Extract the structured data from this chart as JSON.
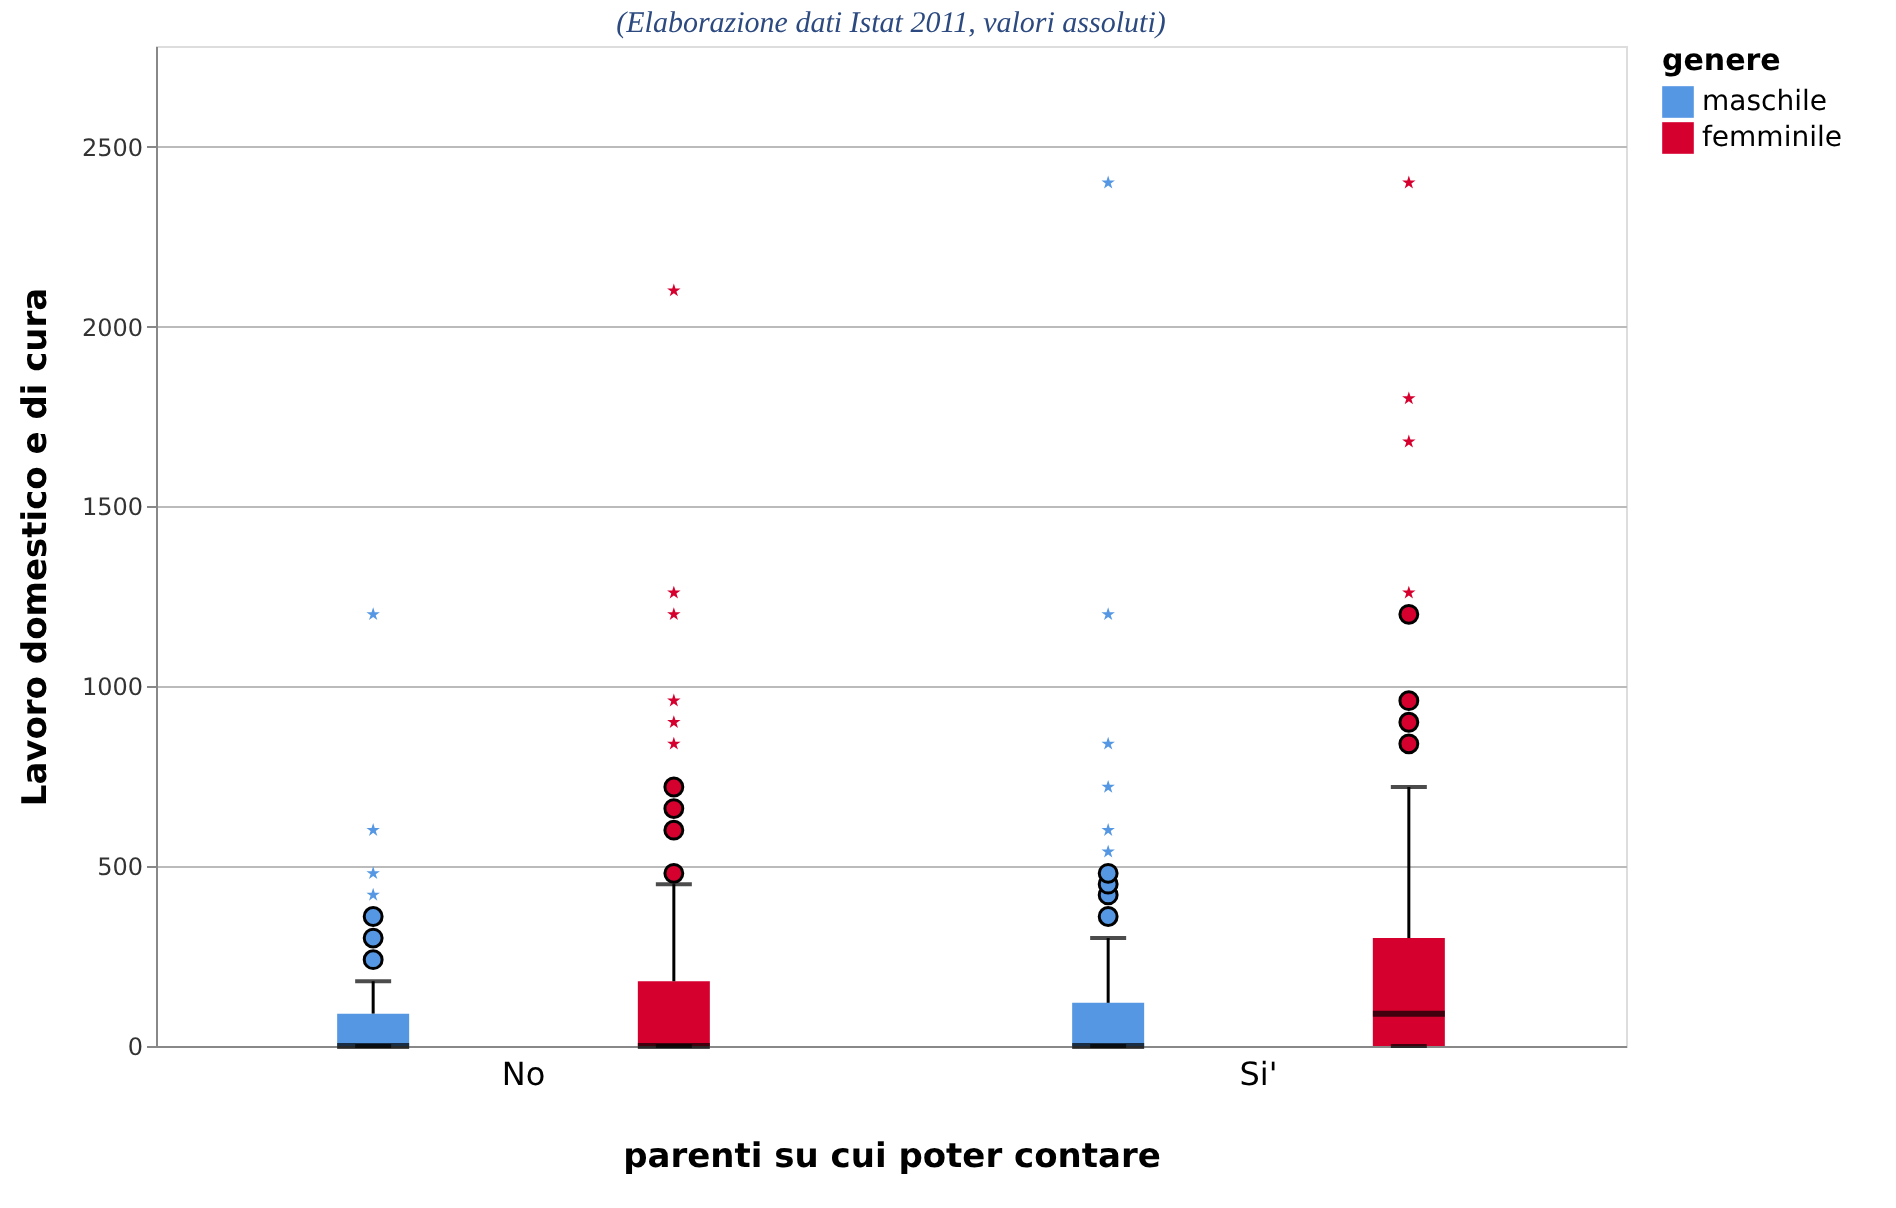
{
  "chart_data": {
    "type": "box",
    "title": "(Elaborazione dati Istat 2011, valori assoluti)",
    "xlabel": "parenti su cui poter contare",
    "ylabel": "Lavoro domestico e di cura",
    "legend_title": "genere",
    "categories": [
      "No",
      "Si'"
    ],
    "series": [
      {
        "name": "maschile",
        "color": "#5597e3",
        "boxes": [
          {
            "low": 0,
            "q1": 0,
            "median": 0,
            "q3": 90,
            "high": 180,
            "outliers": [
              240,
              300,
              360
            ]
          },
          {
            "low": 0,
            "q1": 0,
            "median": 0,
            "q3": 120,
            "high": 300,
            "outliers": [
              360,
              420,
              450,
              480
            ]
          }
        ]
      },
      {
        "name": "femminile",
        "color": "#d6002f",
        "boxes": [
          {
            "low": 0,
            "q1": 0,
            "median": 0,
            "q3": 180,
            "high": 450,
            "outliers": [
              480,
              600,
              660,
              720
            ]
          },
          {
            "low": 0,
            "q1": 0,
            "median": 90,
            "q3": 300,
            "high": 720,
            "outliers": [
              840,
              900,
              960,
              1200
            ]
          }
        ]
      },
      {
        "type": "scatter",
        "marker": "star",
        "color": "#5597e3",
        "x": [
          "No",
          "No",
          "No",
          "No",
          "Si'",
          "Si'",
          "Si'",
          "Si'",
          "Si'",
          "Si'"
        ],
        "values": [
          420,
          480,
          600,
          1200,
          540,
          600,
          720,
          840,
          1200,
          2400
        ]
      },
      {
        "type": "scatter",
        "marker": "star",
        "color": "#d6002f",
        "x": [
          "No",
          "No",
          "No",
          "No",
          "No",
          "No",
          "Si'",
          "Si'",
          "Si'",
          "Si'"
        ],
        "values": [
          840,
          900,
          960,
          1200,
          1260,
          2100,
          1260,
          1680,
          1800,
          2400
        ]
      }
    ],
    "ylim": [
      0,
      2780
    ],
    "yticks": [
      0,
      500,
      1000,
      1500,
      2000,
      2500
    ],
    "grid": "y",
    "legend": "top right"
  }
}
